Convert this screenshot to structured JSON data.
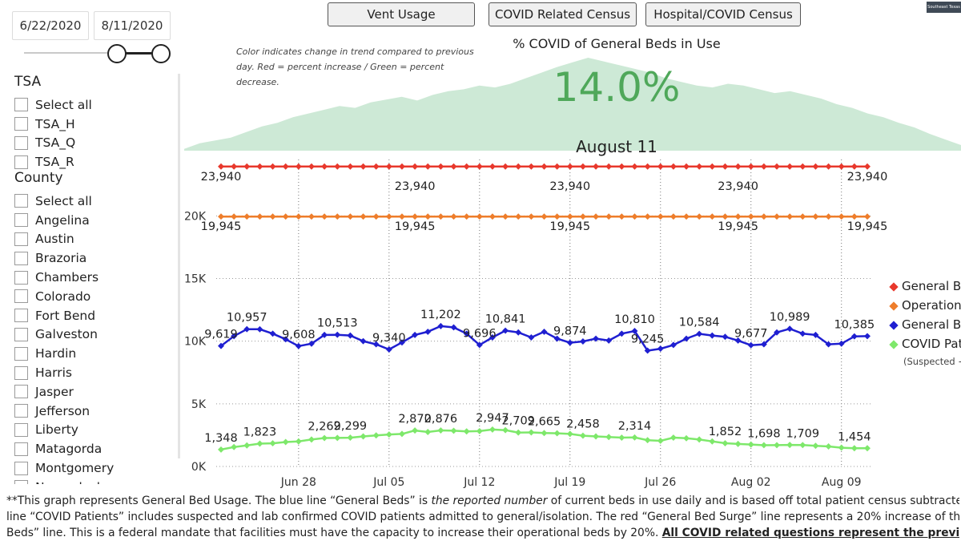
{
  "date_range": {
    "start": "6/22/2020",
    "end": "8/11/2020"
  },
  "filters": {
    "tsa_title": "TSA",
    "tsa_items": [
      "Select all",
      "TSA_H",
      "TSA_Q",
      "TSA_R"
    ],
    "county_title": "County",
    "county_items": [
      "Select all",
      "Angelina",
      "Austin",
      "Brazoria",
      "Chambers",
      "Colorado",
      "Fort Bend",
      "Galveston",
      "Hardin",
      "Harris",
      "Jasper",
      "Jefferson",
      "Liberty",
      "Matagorda",
      "Montgomery",
      "Nacogdoches"
    ]
  },
  "tabs": [
    "Vent Usage",
    "COVID Related Census",
    "Hospital/COVID Census"
  ],
  "note": "Color indicates change in trend compared to previous day. Red = percent increase / Green = percent decrease.",
  "kpi": {
    "title": "% COVID of General Beds in Use",
    "value": "14.0%",
    "date": "August 11",
    "color": "#4fa85a"
  },
  "logo_text": "Southeast Texas",
  "legend": [
    {
      "label": "General Bed Surge",
      "color": "#e8382c"
    },
    {
      "label": "Operational Beds",
      "color": "#ee7d2b"
    },
    {
      "label": "General Beds",
      "color": "#1f1fd1"
    },
    {
      "label": "COVID Patients",
      "color": "#7ee86b",
      "sub": "(Suspected + Confirmed)"
    }
  ],
  "footnote": {
    "line1_a": "**This graph represents General Bed Usage. The blue line “General Beds” is ",
    "line1_em": "the reported number",
    "line1_b": " of current beds in use daily and is based off total patient census subtracted by ICU Beds in use. The green",
    "line2": "line “COVID Patients” includes suspected and lab confirmed COVID patients admitted to general/isolation. The red “General Bed Surge” line represents a 20% increase of the orange “Operational",
    "line3_a": "Beds” line. This is a federal mandate that facilities must have the capacity to increase their operational beds by 20%. ",
    "line3_bold": "All COVID related questions represent the previous day (midnight to 11:59 pm)."
  },
  "chart_data": [
    {
      "type": "area",
      "description_free": true,
      "x_start": "2020-06-22",
      "x_end": "2020-08-11",
      "values": [
        2,
        8,
        11,
        14,
        20,
        26,
        30,
        36,
        40,
        44,
        48,
        46,
        52,
        55,
        58,
        54,
        60,
        64,
        66,
        70,
        68,
        72,
        78,
        84,
        90,
        95,
        100,
        96,
        92,
        88,
        84,
        78,
        74,
        70,
        68,
        72,
        70,
        66,
        62,
        64,
        60,
        56,
        50,
        46,
        40,
        36,
        30,
        25,
        18,
        12,
        6
      ],
      "ylim": [
        0,
        100
      ],
      "color": "#cde9d6"
    },
    {
      "type": "line",
      "x_start": "2020-06-22",
      "x_end": "2020-08-11",
      "x_tick_labels": [
        "Jun 28",
        "Jul 05",
        "Jul 12",
        "Jul 19",
        "Jul 26",
        "Aug 02",
        "Aug 09"
      ],
      "x_tick_indices": [
        6,
        13,
        20,
        27,
        34,
        41,
        48
      ],
      "y_tick_labels": [
        "0K",
        "5K",
        "10K",
        "15K",
        "20K"
      ],
      "y_ticks": [
        0,
        5000,
        10000,
        15000,
        20000
      ],
      "ylim": [
        0,
        24500
      ],
      "grid": false,
      "legend_position": "right",
      "series": [
        {
          "name": "General Bed Surge",
          "color": "#e8382c",
          "values": [
            23940,
            23940,
            23940,
            23940,
            23940,
            23940,
            23940,
            23940,
            23940,
            23940,
            23940,
            23940,
            23940,
            23940,
            23940,
            23940,
            23940,
            23940,
            23940,
            23940,
            23940,
            23940,
            23940,
            23940,
            23940,
            23940,
            23940,
            23940,
            23940,
            23940,
            23940,
            23940,
            23940,
            23940,
            23940,
            23940,
            23940,
            23940,
            23940,
            23940,
            23940,
            23940,
            23940,
            23940,
            23940,
            23940,
            23940,
            23940,
            23940,
            23940,
            23940
          ],
          "labels": [
            {
              "i": 0,
              "text": "23,940",
              "pos": "below"
            },
            {
              "i": 15,
              "text": "23,940",
              "pos": "below2"
            },
            {
              "i": 27,
              "text": "23,940",
              "pos": "below2"
            },
            {
              "i": 40,
              "text": "23,940",
              "pos": "below2"
            },
            {
              "i": 50,
              "text": "23,940",
              "pos": "below"
            }
          ]
        },
        {
          "name": "Operational Beds",
          "color": "#ee7d2b",
          "values": [
            19945,
            19945,
            19945,
            19945,
            19945,
            19945,
            19945,
            19945,
            19945,
            19945,
            19945,
            19945,
            19945,
            19945,
            19945,
            19945,
            19945,
            19945,
            19945,
            19945,
            19945,
            19945,
            19945,
            19945,
            19945,
            19945,
            19945,
            19945,
            19945,
            19945,
            19945,
            19945,
            19945,
            19945,
            19945,
            19945,
            19945,
            19945,
            19945,
            19945,
            19945,
            19945,
            19945,
            19945,
            19945,
            19945,
            19945,
            19945,
            19945,
            19945,
            19945
          ],
          "labels": [
            {
              "i": 0,
              "text": "19,945",
              "pos": "below"
            },
            {
              "i": 15,
              "text": "19,945",
              "pos": "below"
            },
            {
              "i": 27,
              "text": "19,945",
              "pos": "below"
            },
            {
              "i": 40,
              "text": "19,945",
              "pos": "below"
            },
            {
              "i": 50,
              "text": "19,945",
              "pos": "below"
            }
          ]
        },
        {
          "name": "General Beds",
          "color": "#1f1fd1",
          "values": [
            9619,
            10400,
            10957,
            10950,
            10600,
            10150,
            9608,
            9800,
            10500,
            10513,
            10450,
            10000,
            9750,
            9340,
            9900,
            10500,
            10750,
            11202,
            11100,
            10600,
            9696,
            10300,
            10841,
            10700,
            10300,
            10750,
            10200,
            9874,
            9980,
            10200,
            10050,
            10600,
            10810,
            9245,
            9400,
            9700,
            10200,
            10584,
            10450,
            10350,
            10050,
            9677,
            9750,
            10700,
            10989,
            10600,
            10500,
            9750,
            9800,
            10385,
            10400
          ],
          "labels": [
            {
              "i": 0,
              "text": "9,619"
            },
            {
              "i": 2,
              "text": "10,957"
            },
            {
              "i": 6,
              "text": "9,608"
            },
            {
              "i": 9,
              "text": "10,513"
            },
            {
              "i": 13,
              "text": "9,340"
            },
            {
              "i": 17,
              "text": "11,202"
            },
            {
              "i": 20,
              "text": "9,696"
            },
            {
              "i": 22,
              "text": "10,841"
            },
            {
              "i": 27,
              "text": "9,874"
            },
            {
              "i": 32,
              "text": "10,810"
            },
            {
              "i": 33,
              "text": "9,245"
            },
            {
              "i": 37,
              "text": "10,584"
            },
            {
              "i": 41,
              "text": "9,677"
            },
            {
              "i": 44,
              "text": "10,989"
            },
            {
              "i": 49,
              "text": "10,385"
            }
          ]
        },
        {
          "name": "COVID Patients",
          "color": "#7ee86b",
          "values": [
            1348,
            1550,
            1680,
            1823,
            1850,
            1950,
            2000,
            2150,
            2269,
            2280,
            2299,
            2400,
            2480,
            2550,
            2600,
            2870,
            2750,
            2876,
            2850,
            2800,
            2820,
            2947,
            2900,
            2709,
            2720,
            2665,
            2650,
            2600,
            2458,
            2400,
            2350,
            2300,
            2314,
            2100,
            2050,
            2300,
            2250,
            2150,
            2000,
            1852,
            1800,
            1750,
            1698,
            1700,
            1720,
            1709,
            1650,
            1600,
            1500,
            1454,
            1454
          ],
          "labels": [
            {
              "i": 0,
              "text": "1,348"
            },
            {
              "i": 3,
              "text": "1,823"
            },
            {
              "i": 8,
              "text": "2,269"
            },
            {
              "i": 10,
              "text": "2,299"
            },
            {
              "i": 15,
              "text": "2,870"
            },
            {
              "i": 17,
              "text": "2,876"
            },
            {
              "i": 21,
              "text": "2,947"
            },
            {
              "i": 23,
              "text": "2,709"
            },
            {
              "i": 25,
              "text": "2,665"
            },
            {
              "i": 28,
              "text": "2,458"
            },
            {
              "i": 32,
              "text": "2,314"
            },
            {
              "i": 39,
              "text": "1,852"
            },
            {
              "i": 42,
              "text": "1,698"
            },
            {
              "i": 45,
              "text": "1,709"
            },
            {
              "i": 49,
              "text": "1,454"
            }
          ]
        }
      ]
    }
  ]
}
